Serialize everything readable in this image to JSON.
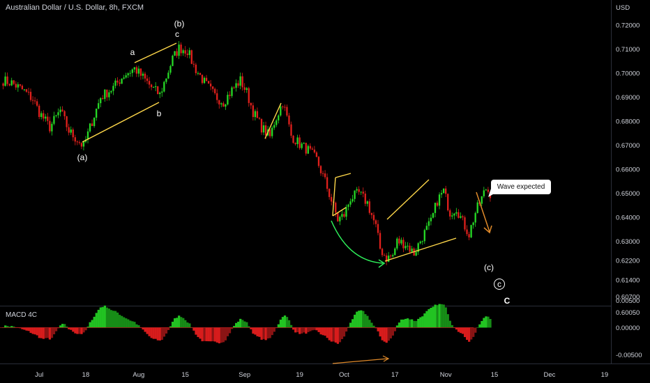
{
  "header": {
    "title": "Australian Dollar / U.S. Dollar, 8h, FXCM",
    "currency": "USD"
  },
  "macd_label": "MACD 4C",
  "callout": "Wave expected",
  "colors": {
    "background": "#000000",
    "up": "#26d926",
    "down": "#e0201c",
    "annotation": "#ffd84a",
    "arrow_green": "#2ef05a",
    "arrow_orange": "#e08a2a",
    "grid": "#1c1c1c"
  },
  "chart_data": [
    {
      "type": "candlestick",
      "title": "Australian Dollar / U.S. Dollar, 8h, FXCM",
      "ylabel": "USD",
      "ylim": [
        0.6035,
        0.7305
      ],
      "xlim_bar_index": [
        0,
        268
      ],
      "y_ticks": [
        "0.72000",
        "0.71000",
        "0.70000",
        "0.69000",
        "0.68000",
        "0.67000",
        "0.66000",
        "0.65000",
        "0.64000",
        "0.63000",
        "0.62200",
        "0.61400",
        "0.60700",
        "0.60050"
      ],
      "x_ticks": [
        {
          "label": "Jul",
          "bar": 17
        },
        {
          "label": "18",
          "bar": 39
        },
        {
          "label": "Aug",
          "bar": 64
        },
        {
          "label": "15",
          "bar": 86
        },
        {
          "label": "Sep",
          "bar": 114
        },
        {
          "label": "19",
          "bar": 140
        },
        {
          "label": "Oct",
          "bar": 161
        },
        {
          "label": "17",
          "bar": 185
        },
        {
          "label": "Nov",
          "bar": 209
        },
        {
          "label": "15",
          "bar": 232
        },
        {
          "label": "Dec",
          "bar": 258
        },
        {
          "label": "19",
          "bar": 284
        }
      ],
      "price_anchors_bar_close": [
        [
          0,
          0.697
        ],
        [
          4,
          0.696
        ],
        [
          10,
          0.6925
        ],
        [
          14,
          0.6892
        ],
        [
          17,
          0.6838
        ],
        [
          22,
          0.6775
        ],
        [
          27,
          0.6845
        ],
        [
          31,
          0.676
        ],
        [
          35,
          0.6722
        ],
        [
          38,
          0.6695
        ],
        [
          42,
          0.68
        ],
        [
          46,
          0.69
        ],
        [
          52,
          0.694
        ],
        [
          57,
          0.6992
        ],
        [
          62,
          0.702
        ],
        [
          66,
          0.6982
        ],
        [
          70,
          0.6942
        ],
        [
          74,
          0.691
        ],
        [
          76,
          0.696
        ],
        [
          80,
          0.706
        ],
        [
          83,
          0.7105
        ],
        [
          87,
          0.7095
        ],
        [
          90,
          0.703
        ],
        [
          95,
          0.6962
        ],
        [
          100,
          0.6905
        ],
        [
          104,
          0.688
        ],
        [
          108,
          0.693
        ],
        [
          112,
          0.697
        ],
        [
          115,
          0.692
        ],
        [
          118,
          0.684
        ],
        [
          122,
          0.6775
        ],
        [
          126,
          0.6735
        ],
        [
          128,
          0.6795
        ],
        [
          132,
          0.688
        ],
        [
          134,
          0.6815
        ],
        [
          136,
          0.674
        ],
        [
          140,
          0.6705
        ],
        [
          144,
          0.668
        ],
        [
          148,
          0.664
        ],
        [
          152,
          0.655
        ],
        [
          155,
          0.647
        ],
        [
          158,
          0.639
        ],
        [
          161,
          0.641
        ],
        [
          164,
          0.648
        ],
        [
          168,
          0.65
        ],
        [
          172,
          0.646
        ],
        [
          176,
          0.636
        ],
        [
          178,
          0.627
        ],
        [
          181,
          0.623
        ],
        [
          184,
          0.624
        ],
        [
          186,
          0.63
        ],
        [
          190,
          0.629
        ],
        [
          194,
          0.625
        ],
        [
          198,
          0.632
        ],
        [
          202,
          0.638
        ],
        [
          205,
          0.647
        ],
        [
          208,
          0.651
        ],
        [
          211,
          0.642
        ],
        [
          214,
          0.644
        ],
        [
          217,
          0.638
        ],
        [
          220,
          0.633
        ],
        [
          223,
          0.642
        ],
        [
          226,
          0.648
        ],
        [
          228,
          0.652
        ],
        [
          230,
          0.65
        ]
      ],
      "wave_labels": [
        "(a)",
        "a",
        "b",
        "(b)",
        "c",
        "(c)",
        "c",
        "C"
      ]
    },
    {
      "type": "histogram",
      "title": "MACD 4C",
      "ylim": [
        -0.0066,
        0.0039
      ],
      "y_ticks": [
        "0.00500",
        "0.00000",
        "-0.00500"
      ],
      "x_ticks": [
        "Jul",
        "18",
        "Aug",
        "15",
        "Sep",
        "19",
        "Oct",
        "17",
        "Nov",
        "15",
        "Dec",
        "19"
      ]
    }
  ]
}
